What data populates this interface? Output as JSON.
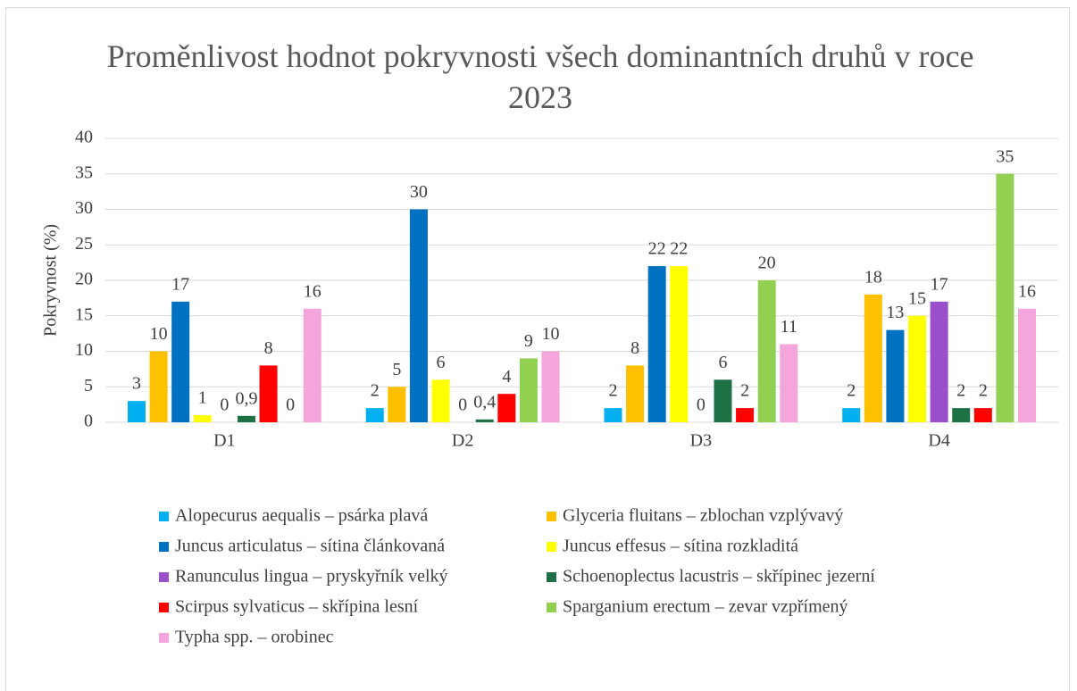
{
  "chart_data": {
    "type": "bar",
    "title": "Proměnlivost hodnot pokryvnosti všech dominantních druhů v roce 2023",
    "y_label": "Pokryvnost (%)",
    "categories": [
      "D1",
      "D2",
      "D3",
      "D4"
    ],
    "series": [
      {
        "name": "Alopecurus aequalis – psárka plavá",
        "color": "#00b0f0",
        "values": [
          3,
          2,
          2,
          2
        ]
      },
      {
        "name": "Glyceria fluitans – zblochan vzplývavý",
        "color": "#ffc000",
        "values": [
          10,
          5,
          8,
          18
        ]
      },
      {
        "name": "Juncus articulatus – sítina článkovaná",
        "color": "#0070c0",
        "values": [
          17,
          30,
          22,
          13
        ]
      },
      {
        "name": "Juncus effesus – sítina rozkladitá",
        "color": "#ffff00",
        "values": [
          1,
          6,
          22,
          15
        ]
      },
      {
        "name": "Ranunculus lingua – pryskyřník velký",
        "color": "#9a4fcb",
        "values": [
          0,
          0,
          0,
          17
        ]
      },
      {
        "name": "Schoenoplectus lacustris – skřípinec jezerní",
        "color": "#1e7145",
        "values": [
          0.9,
          0.4,
          6,
          2
        ],
        "value_labels": [
          "0,9",
          "0,4",
          "6",
          "2"
        ]
      },
      {
        "name": "Scirpus sylvaticus – skřípina lesní",
        "color": "#ff0000",
        "values": [
          8,
          4,
          2,
          2
        ]
      },
      {
        "name": "Sparganium erectum – zevar vzpřímený",
        "color": "#92d050",
        "values": [
          0,
          9,
          20,
          35
        ]
      },
      {
        "name": "Typha spp. – orobinec",
        "color": "#f4a5dc",
        "values": [
          16,
          10,
          11,
          16
        ]
      }
    ],
    "ylim": [
      0,
      40
    ],
    "yticks": [
      0,
      5,
      10,
      15,
      20,
      25,
      30,
      35,
      40
    ],
    "grid": true
  }
}
